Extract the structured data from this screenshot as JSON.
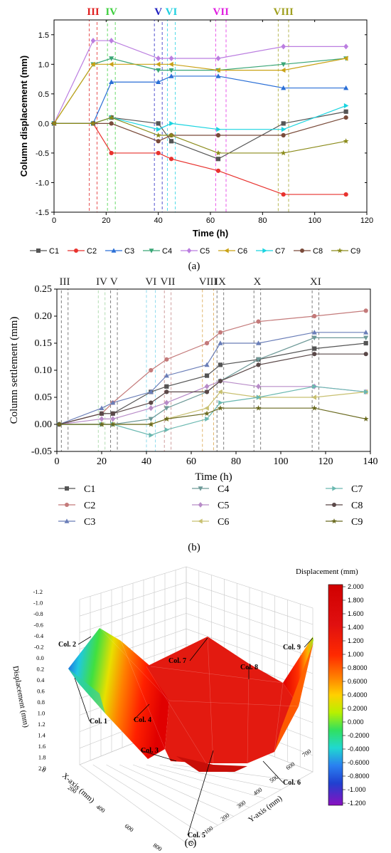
{
  "chart_data": [
    {
      "panel_label": "(a)",
      "type": "line",
      "xlabel": "Time (h)",
      "ylabel": "Column displacement (mm)",
      "xlim": [
        0,
        120
      ],
      "ylim": [
        -1.5,
        1.75
      ],
      "xticks": [
        "0",
        "20",
        "40",
        "60",
        "80",
        "100",
        "120"
      ],
      "yticks": [
        "-1.5",
        "-1.0",
        "-0.5",
        "0.0",
        "0.5",
        "1.0",
        "1.5"
      ],
      "x": [
        0,
        15,
        22,
        40,
        45,
        63,
        88,
        112
      ],
      "stages": [
        {
          "label": "III",
          "x0": 13.5,
          "x1": 16.5,
          "color": "#e02020"
        },
        {
          "label": "IV",
          "x0": 20.5,
          "x1": 23.5,
          "color": "#3fd03f"
        },
        {
          "label": "V",
          "x0": 38.5,
          "x1": 41.5,
          "color": "#2020c0"
        },
        {
          "label": "VI",
          "x0": 43.5,
          "x1": 46.5,
          "color": "#20d0e0"
        },
        {
          "label": "VII",
          "x0": 62,
          "x1": 66,
          "color": "#e020e0"
        },
        {
          "label": "VIII",
          "x0": 86,
          "x1": 90,
          "color": "#a0a020"
        }
      ],
      "series": [
        {
          "name": "C1",
          "color": "#555555",
          "marker": "square",
          "values": [
            0,
            0,
            0.1,
            0,
            -0.3,
            -0.6,
            0,
            0.2
          ]
        },
        {
          "name": "C2",
          "color": "#e8322e",
          "marker": "circle",
          "values": [
            0,
            0,
            -0.5,
            -0.5,
            -0.6,
            -0.8,
            -1.2,
            -1.2
          ]
        },
        {
          "name": "C3",
          "color": "#2a6fd6",
          "marker": "triangle-up",
          "values": [
            0,
            0,
            0.7,
            0.7,
            0.8,
            0.8,
            0.6,
            0.6
          ]
        },
        {
          "name": "C4",
          "color": "#3aa676",
          "marker": "triangle-down",
          "values": [
            0,
            1.0,
            1.1,
            0.9,
            0.9,
            0.9,
            1.0,
            1.1
          ]
        },
        {
          "name": "C5",
          "color": "#bb7ee0",
          "marker": "diamond",
          "values": [
            0,
            1.4,
            1.4,
            1.1,
            1.1,
            1.1,
            1.3,
            1.3
          ]
        },
        {
          "name": "C6",
          "color": "#c9a216",
          "marker": "triangle-left",
          "values": [
            0,
            1.0,
            1.0,
            1.0,
            1.0,
            0.9,
            0.9,
            1.1
          ]
        },
        {
          "name": "C7",
          "color": "#1ad4e0",
          "marker": "triangle-right",
          "values": [
            0,
            0,
            0.1,
            -0.1,
            0,
            -0.1,
            -0.1,
            0.3
          ]
        },
        {
          "name": "C8",
          "color": "#7a4b3a",
          "marker": "circle",
          "values": [
            0,
            0,
            0,
            -0.3,
            -0.2,
            -0.2,
            -0.2,
            0.1
          ]
        },
        {
          "name": "C9",
          "color": "#8b8b1a",
          "marker": "star",
          "values": [
            0,
            0,
            0.1,
            -0.2,
            -0.2,
            -0.5,
            -0.5,
            -0.3
          ]
        }
      ]
    },
    {
      "panel_label": "(b)",
      "type": "line",
      "xlabel": "Time (h)",
      "ylabel": "Column settlement (mm)",
      "xlim": [
        0,
        140
      ],
      "ylim": [
        -0.05,
        0.25
      ],
      "xticks": [
        "0",
        "20",
        "40",
        "60",
        "80",
        "100",
        "120",
        "140"
      ],
      "yticks": [
        "-0.05",
        "0.00",
        "0.05",
        "0.10",
        "0.15",
        "0.20",
        "0.25"
      ],
      "x": [
        1,
        20,
        25,
        42,
        49,
        67,
        73,
        90,
        115,
        138
      ],
      "stages": [
        {
          "label": "III",
          "x0": 2,
          "x1": 5,
          "color": "#555555"
        },
        {
          "label": "IV",
          "x0": 18.5,
          "x1": 21.5,
          "color": "#9bd29b"
        },
        {
          "label": "V",
          "x0": 24,
          "x1": 27,
          "color": "#555555"
        },
        {
          "label": "VI",
          "x0": 40,
          "x1": 44,
          "color": "#6fd0e8"
        },
        {
          "label": "VII",
          "x0": 48,
          "x1": 51,
          "color": "#c08080"
        },
        {
          "label": "VIII",
          "x0": 65,
          "x1": 70,
          "color": "#d8a040"
        },
        {
          "label": "IX",
          "x0": 71.5,
          "x1": 74.5,
          "color": "#555555"
        },
        {
          "label": "X",
          "x0": 88,
          "x1": 91,
          "color": "#555555"
        },
        {
          "label": "XI",
          "x0": 114,
          "x1": 117,
          "color": "#555555"
        }
      ],
      "series": [
        {
          "name": "C1",
          "color": "#555555",
          "marker": "square",
          "values": [
            0,
            0.02,
            0.02,
            0.06,
            0.07,
            0.09,
            0.11,
            0.12,
            0.14,
            0.15
          ]
        },
        {
          "name": "C2",
          "color": "#c47a7a",
          "marker": "circle",
          "values": [
            0,
            0.02,
            0.04,
            0.1,
            0.12,
            0.15,
            0.17,
            0.19,
            0.2,
            0.21
          ]
        },
        {
          "name": "C3",
          "color": "#6a7eb8",
          "marker": "triangle-up",
          "values": [
            0,
            0.03,
            0.04,
            0.06,
            0.09,
            0.11,
            0.15,
            0.15,
            0.17,
            0.17
          ]
        },
        {
          "name": "C4",
          "color": "#6e9a98",
          "marker": "triangle-down",
          "values": [
            0,
            0,
            0,
            0.01,
            0.03,
            0.06,
            0.08,
            0.12,
            0.16,
            0.16
          ]
        },
        {
          "name": "C5",
          "color": "#b88cc8",
          "marker": "diamond",
          "values": [
            0,
            0.01,
            0.01,
            0.03,
            0.04,
            0.07,
            0.08,
            0.07,
            0.07,
            0.06
          ]
        },
        {
          "name": "C6",
          "color": "#c8c070",
          "marker": "triangle-left",
          "values": [
            0,
            0,
            0,
            0,
            0.01,
            0.03,
            0.06,
            0.05,
            0.05,
            0.06
          ]
        },
        {
          "name": "C7",
          "color": "#6ab8b0",
          "marker": "triangle-right",
          "values": [
            0,
            0,
            0,
            -0.02,
            -0.01,
            0.01,
            0.04,
            0.05,
            0.07,
            0.06
          ]
        },
        {
          "name": "C8",
          "color": "#5a4848",
          "marker": "circle",
          "values": [
            0,
            0.02,
            0.02,
            0.04,
            0.06,
            0.06,
            0.08,
            0.11,
            0.13,
            0.13
          ]
        },
        {
          "name": "C9",
          "color": "#6a6a20",
          "marker": "star",
          "values": [
            0,
            0,
            0,
            0,
            0.01,
            0.02,
            0.03,
            0.03,
            0.03,
            0.01
          ]
        }
      ]
    },
    {
      "panel_label": "(c)",
      "type": "surface-3d",
      "colorbar_title": "Displacement (mm)",
      "colorbar_ticks": [
        "2.000",
        "1.800",
        "1.600",
        "1.400",
        "1.200",
        "1.000",
        "0.8000",
        "0.6000",
        "0.4000",
        "0.2000",
        "0.000",
        "-0.2000",
        "-0.4000",
        "-0.6000",
        "-0.8000",
        "-1.000",
        "-1.200"
      ],
      "z_axis_label": "Displacement  (mm)",
      "z_ticks": [
        "-1.2",
        "-1.0",
        "-0.8",
        "-0.6",
        "-0.4",
        "-0.2",
        "0.0",
        "0.2",
        "0.4",
        "0.6",
        "0.8",
        "1.0",
        "1.2",
        "1.4",
        "1.6",
        "1.8",
        "2.0"
      ],
      "x_axis_label": "X-axis (mm)",
      "x_ticks": [
        "0",
        "200",
        "400",
        "600",
        "800"
      ],
      "y_axis_label": "Y-axis (mm)",
      "y_ticks": [
        "0",
        "100",
        "200",
        "300",
        "400",
        "500",
        "600",
        "700"
      ],
      "columns": [
        "Col. 1",
        "Col. 2",
        "Col. 3",
        "Col. 4",
        "Col. 5",
        "Col. 6",
        "Col. 7",
        "Col. 8",
        "Col. 9"
      ]
    }
  ]
}
